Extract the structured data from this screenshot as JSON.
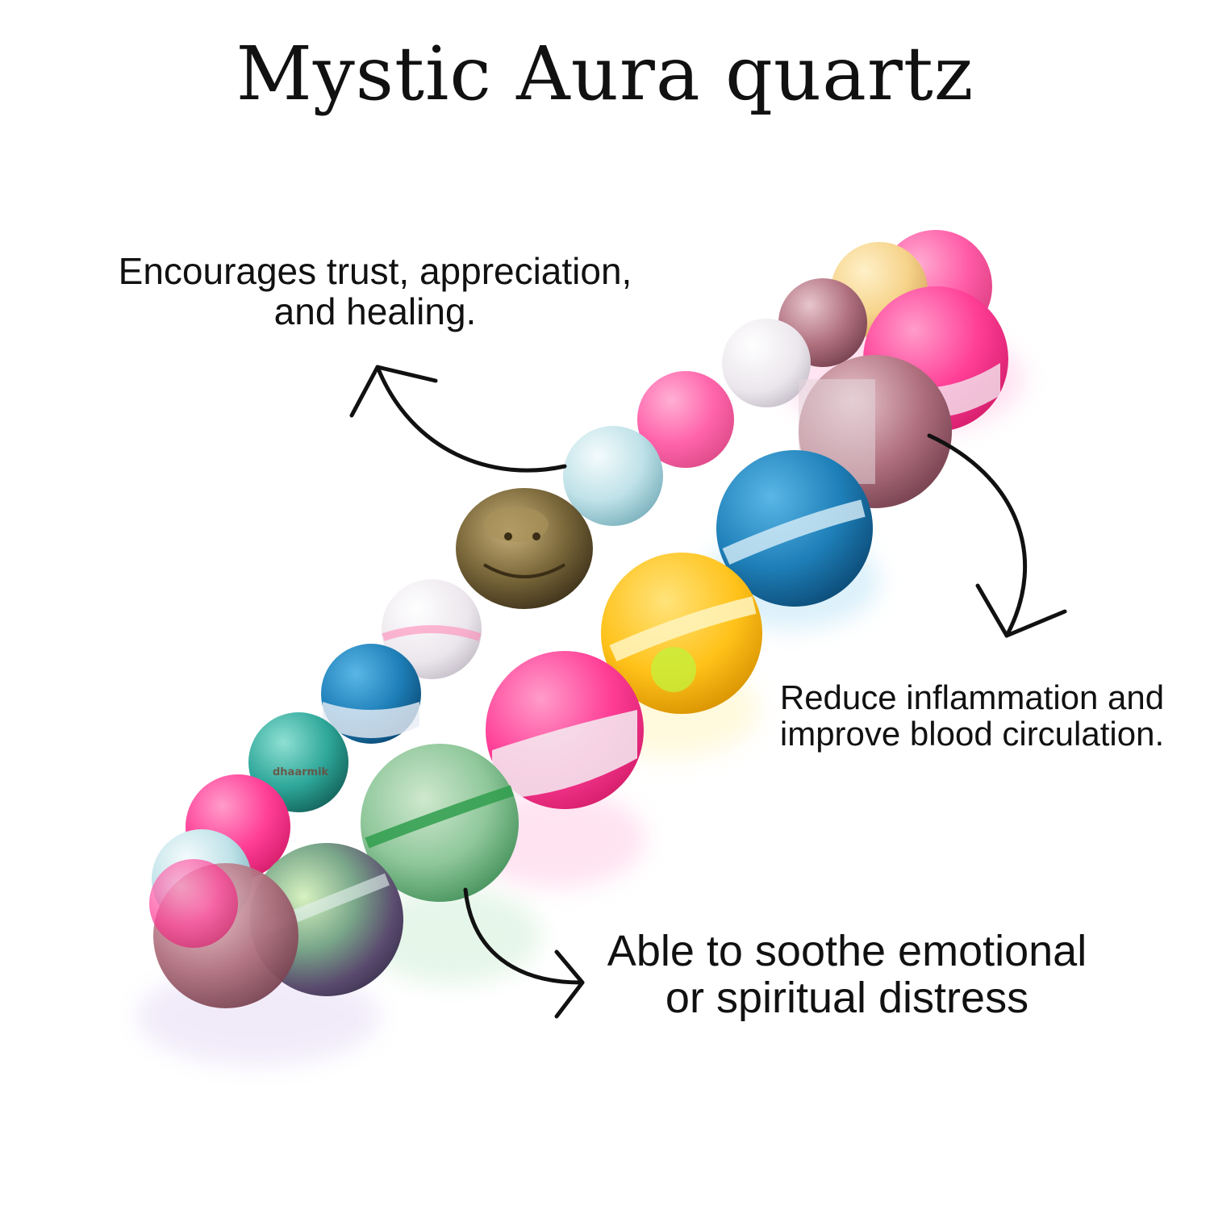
{
  "title": "Mystic Aura quartz",
  "callouts": {
    "trust": {
      "line1": "Encourages trust, appreciation,",
      "line2": "and healing."
    },
    "inflammation": {
      "line1": "Reduce inflammation and",
      "line2": "improve blood circulation."
    },
    "soothe": {
      "line1": "Able to soothe emotional",
      "line2": "or spiritual distress"
    }
  },
  "watermark": "dhaarmik",
  "bead_colors": {
    "pink": "#ff3d96",
    "blue": "#1e7fb8",
    "yellow": "#ffc21a",
    "green": "#3aa55a",
    "mauve": "#b0707e",
    "frost": "#e9e4ea",
    "teal": "#2ea79a",
    "bronze": "#7d6a3c"
  }
}
